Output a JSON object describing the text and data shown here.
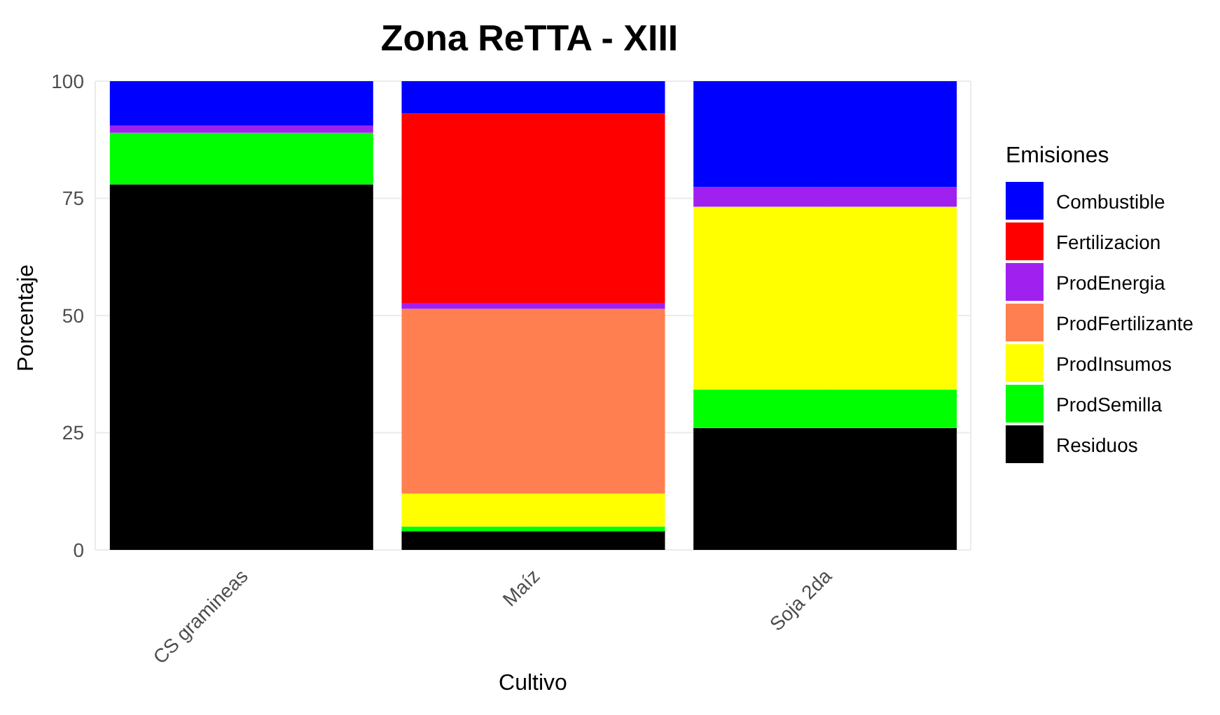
{
  "chart_data": {
    "type": "bar",
    "title": "Zona ReTTA - XIII",
    "xlabel": "Cultivo",
    "ylabel": "Porcentaje",
    "legend_title": "Emisiones",
    "categories": [
      "CS gramineas",
      "Maíz",
      "Soja 2da"
    ],
    "stacked": true,
    "series": [
      {
        "name": "Residuos",
        "color": "#000000",
        "values": [
          78,
          4,
          26
        ]
      },
      {
        "name": "ProdSemilla",
        "color": "#00ff00",
        "values": [
          11,
          1,
          8.2
        ]
      },
      {
        "name": "ProdInsumos",
        "color": "#ffff00",
        "values": [
          0,
          7,
          39
        ]
      },
      {
        "name": "ProdFertilizante",
        "color": "#ff7f50",
        "values": [
          0,
          39.4,
          0
        ]
      },
      {
        "name": "ProdEnergia",
        "color": "#a020f0",
        "values": [
          1.5,
          1.3,
          4.2
        ]
      },
      {
        "name": "Fertilizacion",
        "color": "#ff0000",
        "values": [
          0,
          40.4,
          0
        ]
      },
      {
        "name": "Combustible",
        "color": "#0000ff",
        "values": [
          9.5,
          6.9,
          22.6
        ]
      }
    ],
    "ylim": [
      0,
      100
    ],
    "yticks": [
      0,
      25,
      50,
      75,
      100
    ],
    "grid": true,
    "legend": "right"
  }
}
